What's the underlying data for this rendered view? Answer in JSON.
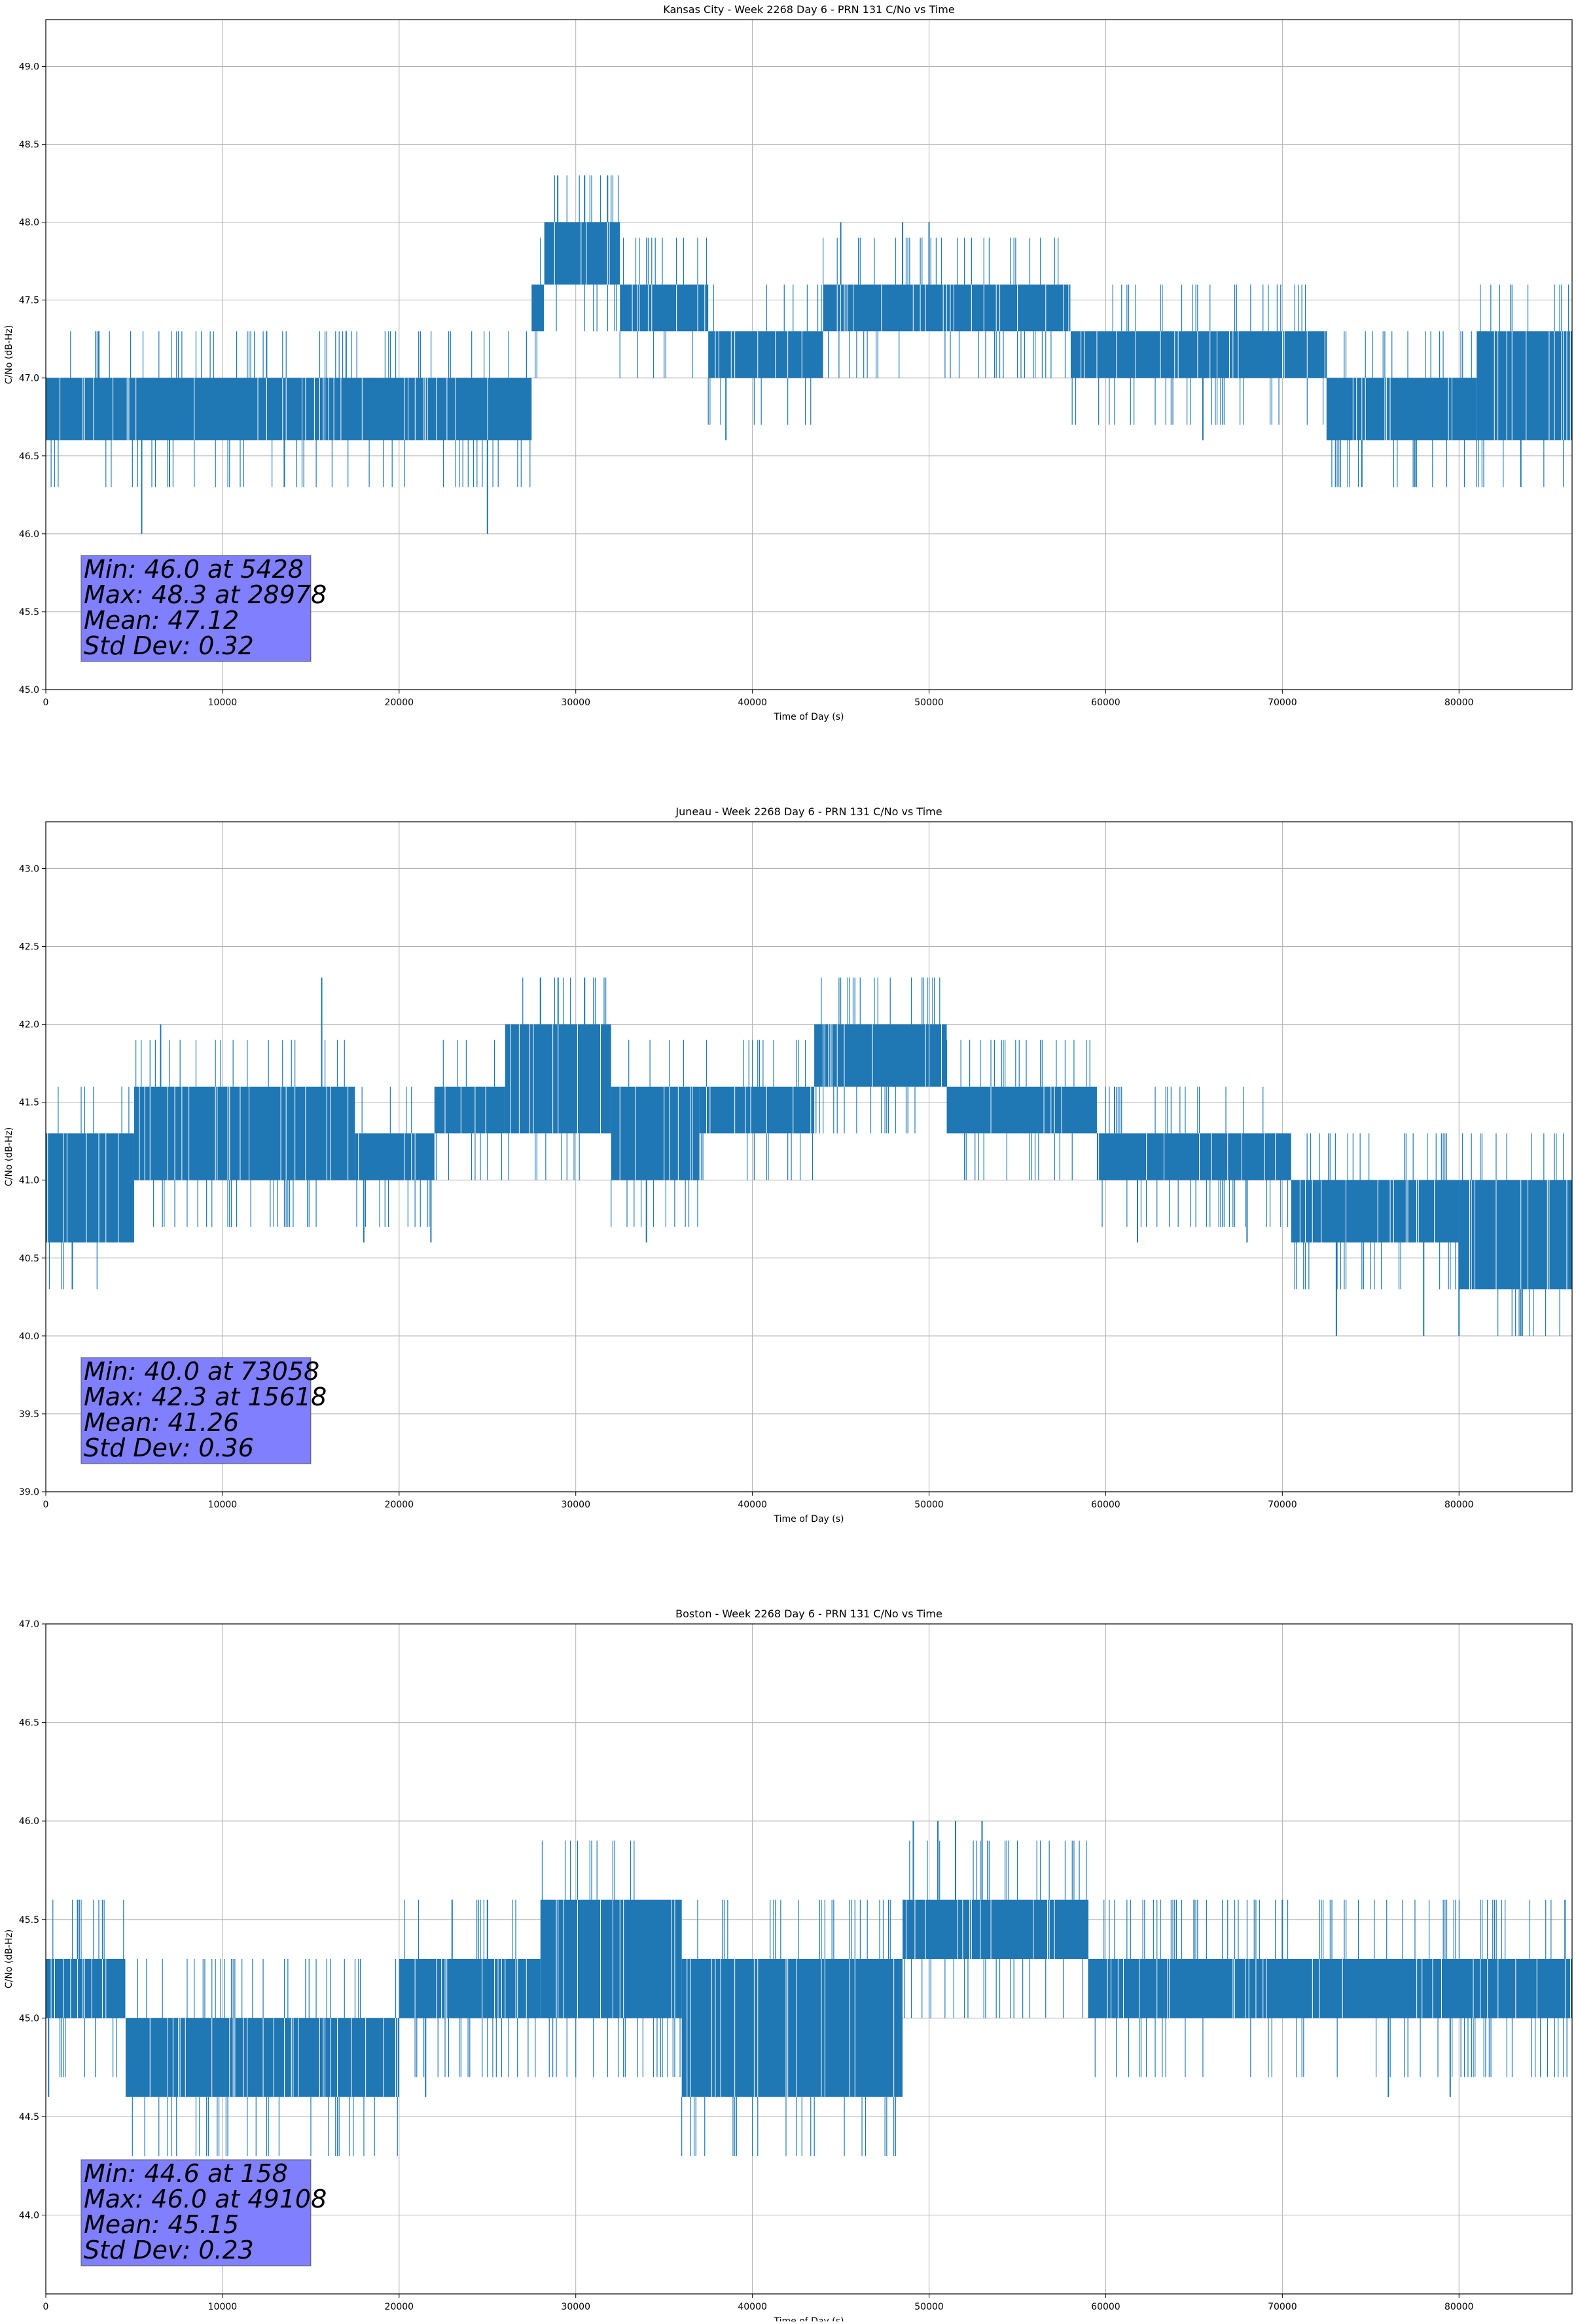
{
  "chart_data": [
    {
      "type": "line",
      "title": "Kansas City - Week 2268 Day 6 - PRN 131 C/No vs Time",
      "xlabel": "Time of Day (s)",
      "ylabel": "C/No (dB-Hz)",
      "xlim": [
        0,
        86400
      ],
      "ylim": [
        45.0,
        49.3
      ],
      "xticks": [
        0,
        10000,
        20000,
        30000,
        40000,
        50000,
        60000,
        70000,
        80000
      ],
      "yticks": [
        45.0,
        45.5,
        46.0,
        46.5,
        47.0,
        47.5,
        48.0,
        48.5,
        49.0
      ],
      "grid": true,
      "color": "#1f77b4",
      "series": [
        {
          "name": "C/No",
          "segments": [
            {
              "x0": 0,
              "x1": 27500,
              "lo": 46.6,
              "hi": 47.0
            },
            {
              "x0": 27500,
              "x1": 28200,
              "lo": 47.3,
              "hi": 47.6
            },
            {
              "x0": 28200,
              "x1": 32500,
              "lo": 47.6,
              "hi": 48.0
            },
            {
              "x0": 32500,
              "x1": 37500,
              "lo": 47.3,
              "hi": 47.6
            },
            {
              "x0": 37500,
              "x1": 44000,
              "lo": 47.0,
              "hi": 47.3
            },
            {
              "x0": 44000,
              "x1": 58000,
              "lo": 47.3,
              "hi": 47.6
            },
            {
              "x0": 58000,
              "x1": 72500,
              "lo": 47.0,
              "hi": 47.3
            },
            {
              "x0": 72500,
              "x1": 81000,
              "lo": 46.6,
              "hi": 47.0
            },
            {
              "x0": 81000,
              "x1": 86400,
              "lo": 46.6,
              "hi": 47.3
            }
          ],
          "spikes": [
            {
              "x": 5428,
              "y": 46.0
            },
            {
              "x": 28978,
              "y": 48.3
            },
            {
              "x": 30500,
              "y": 48.3
            },
            {
              "x": 31800,
              "y": 48.3
            },
            {
              "x": 25000,
              "y": 46.0
            },
            {
              "x": 13500,
              "y": 46.3
            },
            {
              "x": 7000,
              "y": 46.3
            },
            {
              "x": 3000,
              "y": 47.3
            },
            {
              "x": 12500,
              "y": 47.3
            },
            {
              "x": 17000,
              "y": 47.3
            },
            {
              "x": 45000,
              "y": 48.0
            },
            {
              "x": 48500,
              "y": 48.0
            },
            {
              "x": 50000,
              "y": 48.0
            },
            {
              "x": 38500,
              "y": 46.6
            },
            {
              "x": 65500,
              "y": 46.6
            },
            {
              "x": 74500,
              "y": 46.3
            },
            {
              "x": 77500,
              "y": 46.3
            },
            {
              "x": 83500,
              "y": 46.3
            }
          ]
        }
      ],
      "stats": {
        "min": "Min: 46.0 at 5428",
        "max": "Max: 48.3 at 28978",
        "mean": "Mean: 47.12",
        "std": "Std Dev: 0.32"
      }
    },
    {
      "type": "line",
      "title": "Juneau - Week 2268 Day 6 - PRN 131 C/No vs Time",
      "xlabel": "Time of Day (s)",
      "ylabel": "C/No (dB-Hz)",
      "xlim": [
        0,
        86400
      ],
      "ylim": [
        39.0,
        43.3
      ],
      "xticks": [
        0,
        10000,
        20000,
        30000,
        40000,
        50000,
        60000,
        70000,
        80000
      ],
      "yticks": [
        39.0,
        39.5,
        40.0,
        40.5,
        41.0,
        41.5,
        42.0,
        42.5,
        43.0
      ],
      "grid": true,
      "color": "#1f77b4",
      "series": [
        {
          "name": "C/No",
          "segments": [
            {
              "x0": 0,
              "x1": 5000,
              "lo": 40.6,
              "hi": 41.3
            },
            {
              "x0": 5000,
              "x1": 17500,
              "lo": 41.0,
              "hi": 41.6
            },
            {
              "x0": 17500,
              "x1": 22000,
              "lo": 41.0,
              "hi": 41.3
            },
            {
              "x0": 22000,
              "x1": 26000,
              "lo": 41.3,
              "hi": 41.6
            },
            {
              "x0": 26000,
              "x1": 32000,
              "lo": 41.3,
              "hi": 42.0
            },
            {
              "x0": 32000,
              "x1": 37000,
              "lo": 41.0,
              "hi": 41.6
            },
            {
              "x0": 37000,
              "x1": 43500,
              "lo": 41.3,
              "hi": 41.6
            },
            {
              "x0": 43500,
              "x1": 51000,
              "lo": 41.6,
              "hi": 42.0
            },
            {
              "x0": 51000,
              "x1": 59500,
              "lo": 41.3,
              "hi": 41.6
            },
            {
              "x0": 59500,
              "x1": 70500,
              "lo": 41.0,
              "hi": 41.3
            },
            {
              "x0": 70500,
              "x1": 80000,
              "lo": 40.6,
              "hi": 41.0
            },
            {
              "x0": 80000,
              "x1": 86400,
              "lo": 40.3,
              "hi": 41.0
            }
          ],
          "spikes": [
            {
              "x": 1500,
              "y": 40.3
            },
            {
              "x": 15618,
              "y": 42.3
            },
            {
              "x": 28000,
              "y": 42.3
            },
            {
              "x": 29000,
              "y": 42.3
            },
            {
              "x": 30500,
              "y": 42.3
            },
            {
              "x": 6500,
              "y": 42.0
            },
            {
              "x": 18000,
              "y": 40.6
            },
            {
              "x": 21800,
              "y": 40.6
            },
            {
              "x": 34000,
              "y": 40.6
            },
            {
              "x": 73058,
              "y": 40.0
            },
            {
              "x": 78000,
              "y": 40.0
            },
            {
              "x": 80000,
              "y": 40.0
            },
            {
              "x": 83500,
              "y": 40.0
            },
            {
              "x": 61800,
              "y": 40.6
            },
            {
              "x": 68000,
              "y": 40.6
            },
            {
              "x": 48000,
              "y": 42.0
            },
            {
              "x": 60500,
              "y": 41.6
            }
          ]
        }
      ],
      "stats": {
        "min": "Min: 40.0 at 73058",
        "max": "Max: 42.3 at 15618",
        "mean": "Mean: 41.26",
        "std": "Std Dev: 0.36"
      }
    },
    {
      "type": "line",
      "title": "Boston - Week 2268 Day 6 - PRN 131 C/No vs Time",
      "xlabel": "Time of Day (s)",
      "ylabel": "C/No (dB-Hz)",
      "xlim": [
        0,
        86400
      ],
      "ylim": [
        43.6,
        47.0
      ],
      "xticks": [
        0,
        10000,
        20000,
        30000,
        40000,
        50000,
        60000,
        70000,
        80000
      ],
      "yticks": [
        44.0,
        44.5,
        45.0,
        45.5,
        46.0,
        46.5,
        47.0
      ],
      "grid": true,
      "color": "#1f77b4",
      "series": [
        {
          "name": "C/No",
          "segments": [
            {
              "x0": 0,
              "x1": 4500,
              "lo": 45.0,
              "hi": 45.3
            },
            {
              "x0": 4500,
              "x1": 20000,
              "lo": 44.6,
              "hi": 45.0
            },
            {
              "x0": 20000,
              "x1": 28000,
              "lo": 45.0,
              "hi": 45.3
            },
            {
              "x0": 28000,
              "x1": 36000,
              "lo": 45.0,
              "hi": 45.6
            },
            {
              "x0": 36000,
              "x1": 48500,
              "lo": 44.6,
              "hi": 45.3
            },
            {
              "x0": 48500,
              "x1": 59000,
              "lo": 45.3,
              "hi": 45.6
            },
            {
              "x0": 59000,
              "x1": 86400,
              "lo": 45.0,
              "hi": 45.3
            }
          ],
          "spikes": [
            {
              "x": 158,
              "y": 44.6
            },
            {
              "x": 1800,
              "y": 45.6
            },
            {
              "x": 49108,
              "y": 46.0
            },
            {
              "x": 50500,
              "y": 46.0
            },
            {
              "x": 51500,
              "y": 46.0
            },
            {
              "x": 53000,
              "y": 46.0
            },
            {
              "x": 23000,
              "y": 45.6
            },
            {
              "x": 25000,
              "y": 45.6
            },
            {
              "x": 21500,
              "y": 44.6
            },
            {
              "x": 47500,
              "y": 44.6
            },
            {
              "x": 65000,
              "y": 45.6
            },
            {
              "x": 70000,
              "y": 45.6
            },
            {
              "x": 76000,
              "y": 44.6
            },
            {
              "x": 79500,
              "y": 44.6
            },
            {
              "x": 86000,
              "y": 45.6
            }
          ]
        }
      ],
      "stats": {
        "min": "Min: 44.6 at 158",
        "max": "Max: 46.0 at 49108",
        "mean": "Mean: 45.15",
        "std": "Std Dev: 0.23"
      }
    }
  ]
}
